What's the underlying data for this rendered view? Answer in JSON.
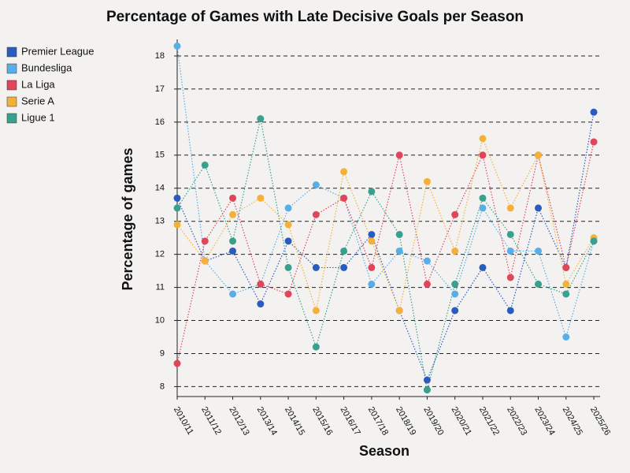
{
  "chart_data": {
    "type": "line",
    "title": "Percentage of Games with Late Decisive Goals per Season",
    "x_label": "Season",
    "y_label": "Percentage of games",
    "categories": [
      "2010/11",
      "2011/12",
      "2012/13",
      "2013/14",
      "2014/15",
      "2015/16",
      "2016/17",
      "2017/18",
      "2018/19",
      "2019/20",
      "2020/21",
      "2021/22",
      "2022/23",
      "2023/24",
      "2024/25",
      "2025/26"
    ],
    "series": [
      {
        "name": "Premier League",
        "color": "#2a5cbf",
        "values": [
          13.7,
          11.8,
          12.1,
          10.5,
          12.4,
          11.6,
          11.6,
          12.6,
          10.3,
          8.2,
          10.3,
          11.6,
          10.3,
          13.4,
          11.6,
          16.3
        ]
      },
      {
        "name": "Bundesliga",
        "color": "#5aaee8",
        "values": [
          18.3,
          11.8,
          10.8,
          11.1,
          13.4,
          14.1,
          13.7,
          11.1,
          12.1,
          11.8,
          10.8,
          13.4,
          12.1,
          12.1,
          9.5,
          12.4
        ]
      },
      {
        "name": "La Liga",
        "color": "#e0455a",
        "values": [
          8.7,
          12.4,
          13.7,
          11.1,
          10.8,
          13.2,
          13.7,
          11.6,
          15.0,
          11.1,
          13.2,
          15.0,
          11.3,
          15.0,
          11.6,
          15.4
        ]
      },
      {
        "name": "Serie A",
        "color": "#f4b13a",
        "values": [
          12.9,
          11.8,
          13.2,
          13.7,
          12.9,
          10.3,
          14.5,
          12.4,
          10.3,
          14.2,
          12.1,
          15.5,
          13.4,
          15.0,
          11.1,
          12.5
        ]
      },
      {
        "name": "Ligue 1",
        "color": "#3aa08e",
        "values": [
          13.4,
          14.7,
          12.4,
          16.1,
          11.6,
          9.2,
          12.1,
          13.9,
          12.6,
          7.9,
          11.1,
          13.7,
          12.6,
          11.1,
          10.8,
          12.4
        ]
      }
    ],
    "ylim": [
      7.7,
      18.5
    ],
    "yticks": [
      8,
      9,
      10,
      11,
      12,
      13,
      14,
      15,
      16,
      17,
      18
    ],
    "grid": true,
    "legend": "top-left"
  }
}
